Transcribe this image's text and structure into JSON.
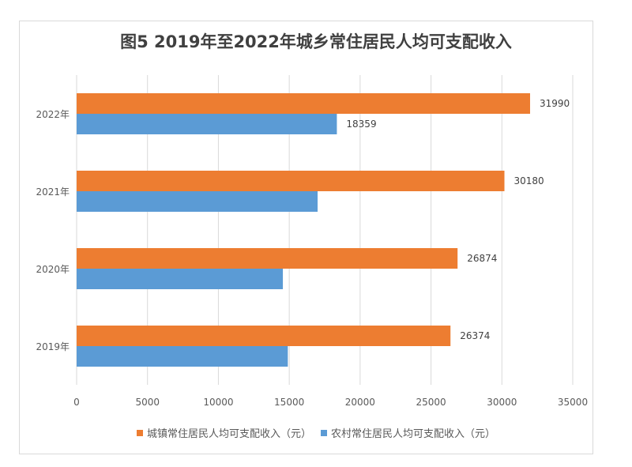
{
  "chart_data": {
    "type": "bar",
    "orientation": "horizontal",
    "title": "图5 2019年至2022年城乡常住居民人均可支配收入",
    "categories": [
      "2022年",
      "2021年",
      "2020年",
      "2019年"
    ],
    "series": [
      {
        "name": "城镇常住居民人均可支配收入（元）",
        "color": "#ed7d31",
        "values": [
          31990,
          30180,
          26874,
          26374
        ],
        "labels": [
          "31990",
          "30180",
          "26874",
          "26374"
        ]
      },
      {
        "name": "农村常住居民人均可支配收入（元）",
        "color": "#5b9bd5",
        "values": [
          18359,
          17000,
          14550,
          14900
        ],
        "labels": [
          "18359",
          "",
          "",
          ""
        ]
      }
    ],
    "xlim": [
      0,
      35000
    ],
    "xticks": [
      0,
      5000,
      10000,
      15000,
      20000,
      25000,
      30000,
      35000
    ],
    "xlabel": "",
    "ylabel": "",
    "grid": true,
    "legend_position": "bottom"
  }
}
